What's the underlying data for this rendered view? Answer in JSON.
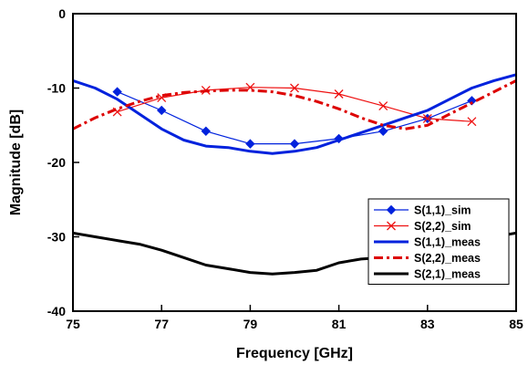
{
  "chart_data": {
    "type": "line",
    "title": "",
    "xlabel": "Frequency [GHz]",
    "ylabel": "Magnitude [dB]",
    "xlim": [
      75,
      85
    ],
    "ylim": [
      -40,
      0
    ],
    "xticks": [
      75,
      77,
      79,
      81,
      83,
      85
    ],
    "yticks": [
      0,
      -10,
      -20,
      -30,
      -40
    ],
    "grid": false,
    "legend_position": "bottom-right",
    "series": [
      {
        "name": "S(1,1)_sim",
        "color": "#0022dd",
        "style": "thin-line-diamond-markers",
        "x": [
          76,
          77,
          78,
          79,
          80,
          81,
          82,
          83,
          84
        ],
        "y": [
          -10.5,
          -13.0,
          -15.8,
          -17.5,
          -17.5,
          -16.8,
          -15.8,
          -14.1,
          -11.7
        ]
      },
      {
        "name": "S(2,2)_sim",
        "color": "#ee1111",
        "style": "thin-line-x-markers",
        "x": [
          76,
          77,
          78,
          79,
          80,
          81,
          82,
          83,
          84
        ],
        "y": [
          -13.2,
          -11.3,
          -10.3,
          -9.9,
          -10.0,
          -10.8,
          -12.4,
          -14.1,
          -14.5
        ]
      },
      {
        "name": "S(1,1)_meas",
        "color": "#0022dd",
        "style": "thick-solid",
        "x": [
          75,
          75.5,
          76,
          76.5,
          77,
          77.5,
          78,
          78.5,
          79,
          79.5,
          80,
          80.5,
          81,
          81.5,
          82,
          82.5,
          83,
          83.5,
          84,
          84.5,
          85
        ],
        "y": [
          -9.0,
          -10.0,
          -11.5,
          -13.5,
          -15.5,
          -17.0,
          -17.8,
          -18.0,
          -18.5,
          -18.8,
          -18.5,
          -18.0,
          -17.0,
          -16.0,
          -15.0,
          -14.0,
          -13.0,
          -11.5,
          -10.0,
          -9.0,
          -8.2
        ]
      },
      {
        "name": "S(2,2)_meas",
        "color": "#dd0000",
        "style": "thick-dash-dot",
        "x": [
          75,
          75.5,
          76,
          76.5,
          77,
          77.5,
          78,
          78.5,
          79,
          79.5,
          80,
          80.5,
          81,
          81.5,
          82,
          82.5,
          83,
          83.5,
          84,
          84.5,
          85
        ],
        "y": [
          -15.5,
          -14.0,
          -12.8,
          -11.8,
          -11.0,
          -10.6,
          -10.4,
          -10.3,
          -10.3,
          -10.5,
          -11.0,
          -11.8,
          -12.8,
          -14.0,
          -15.0,
          -15.5,
          -15.0,
          -13.5,
          -12.0,
          -10.5,
          -9.0
        ]
      },
      {
        "name": "S(2,1)_meas",
        "color": "#000000",
        "style": "thick-solid",
        "x": [
          75,
          75.5,
          76,
          76.5,
          77,
          77.5,
          78,
          78.5,
          79,
          79.5,
          80,
          80.5,
          81,
          81.5,
          82,
          82.5,
          83,
          83.5,
          84,
          84.5,
          85
        ],
        "y": [
          -29.5,
          -30.0,
          -30.5,
          -31.0,
          -31.8,
          -32.8,
          -33.8,
          -34.3,
          -34.8,
          -35.0,
          -34.8,
          -34.5,
          -33.5,
          -33.0,
          -32.8,
          -32.0,
          -31.5,
          -31.0,
          -30.5,
          -30.0,
          -29.5
        ]
      }
    ]
  }
}
